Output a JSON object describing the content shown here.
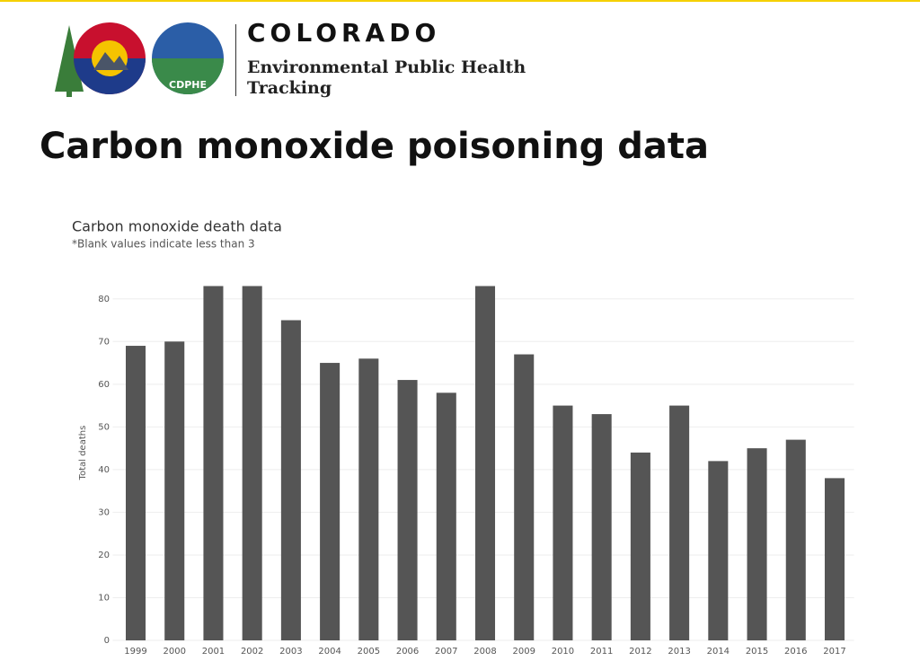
{
  "header": {
    "logo_text": "CDPHE",
    "brand": "COLORADO",
    "subtitle": "Environmental Public Health Tracking"
  },
  "page_title": "Carbon monoxide poisoning data",
  "chart_data": {
    "type": "bar",
    "title": "Carbon monoxide death data",
    "subtitle": "*Blank values indicate less than 3",
    "y_label": "Total deaths",
    "categories": [
      "1999",
      "2000",
      "2001",
      "2002",
      "2003",
      "2004",
      "2005",
      "2006",
      "2007",
      "2008",
      "2009",
      "2010",
      "2011",
      "2012",
      "2013",
      "2014",
      "2015",
      "2016",
      "2017"
    ],
    "values": [
      69,
      70,
      83,
      83,
      75,
      65,
      66,
      61,
      58,
      83,
      67,
      55,
      53,
      44,
      55,
      42,
      45,
      47,
      38
    ],
    "color": "#555555",
    "ylim": [
      0,
      85
    ],
    "yticks": [
      0,
      10,
      20,
      30,
      40,
      50,
      60,
      70,
      80
    ],
    "grid": true
  }
}
